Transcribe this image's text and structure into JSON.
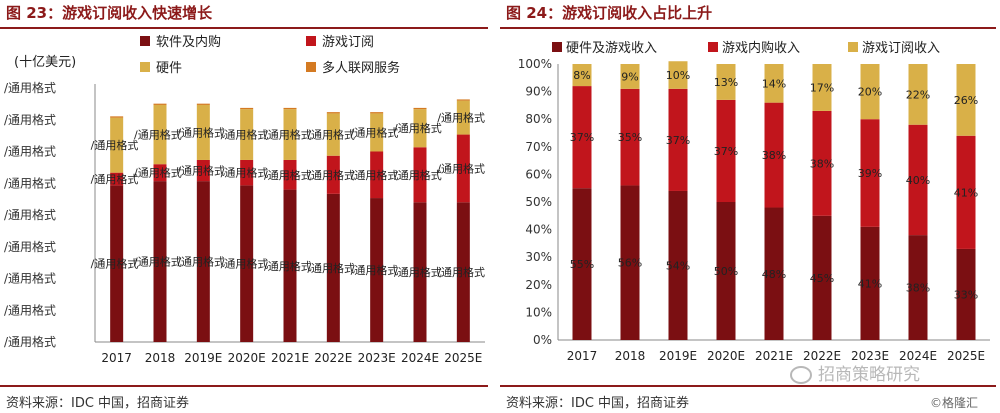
{
  "left": {
    "figure_title": "图 23：游戏订阅收入快速增长",
    "source": "资料来源：IDC 中国，招商证券"
  },
  "right": {
    "figure_title": "图 24：游戏订阅收入占比上升",
    "source": "资料来源：IDC 中国，招商证券"
  },
  "watermark": "招商策略研究",
  "credit": "©格隆汇",
  "chart_data": [
    {
      "type": "bar",
      "stacked": true,
      "ylabel": "(十亿美元)",
      "ytick_labels": [
        "/通用格式",
        "/通用格式",
        "/通用格式",
        "/通用格式",
        "/通用格式",
        "/通用格式",
        "/通用格式",
        "/通用格式",
        "/通用格式"
      ],
      "categories": [
        "2017",
        "2018",
        "2019E",
        "2020E",
        "2021E",
        "2022E",
        "2023E",
        "2024E",
        "2025E"
      ],
      "series": [
        {
          "name": "软件及内购",
          "color": "#7b0f12",
          "values": [
            37,
            38,
            38,
            37,
            36,
            35,
            34,
            33,
            33
          ]
        },
        {
          "name": "游戏订阅",
          "color": "#c1151c",
          "values": [
            3,
            4,
            5,
            6,
            7,
            9,
            11,
            13,
            16
          ]
        },
        {
          "name": "硬件",
          "color": "#d9b048",
          "values": [
            13,
            14,
            13,
            12,
            12,
            10,
            9,
            9,
            8
          ]
        },
        {
          "name": "多人联网服务",
          "color": "#d47a22",
          "values": [
            0.3,
            0.3,
            0.3,
            0.3,
            0.3,
            0.3,
            0.3,
            0.3,
            0.3
          ]
        }
      ],
      "ylim": [
        0,
        60
      ],
      "data_label_text": "/通用格式",
      "legend": "top",
      "grid": false
    },
    {
      "type": "bar",
      "stacked": true,
      "percent": true,
      "categories": [
        "2017",
        "2018",
        "2019E",
        "2020E",
        "2021E",
        "2022E",
        "2023E",
        "2024E",
        "2025E"
      ],
      "series": [
        {
          "name": "硬件及游戏收入",
          "color": "#7b0f12",
          "values": [
            55,
            56,
            54,
            50,
            48,
            45,
            41,
            38,
            33
          ]
        },
        {
          "name": "游戏内购收入",
          "color": "#c1151c",
          "values": [
            37,
            35,
            37,
            37,
            38,
            38,
            39,
            40,
            41
          ]
        },
        {
          "name": "游戏订阅收入",
          "color": "#d9b048",
          "values": [
            8,
            9,
            10,
            13,
            14,
            17,
            20,
            22,
            26
          ]
        }
      ],
      "ylim": [
        0,
        100
      ],
      "ytick_labels": [
        "0%",
        "10%",
        "20%",
        "30%",
        "40%",
        "50%",
        "60%",
        "70%",
        "80%",
        "90%",
        "100%"
      ],
      "legend": "top",
      "grid": false
    }
  ]
}
